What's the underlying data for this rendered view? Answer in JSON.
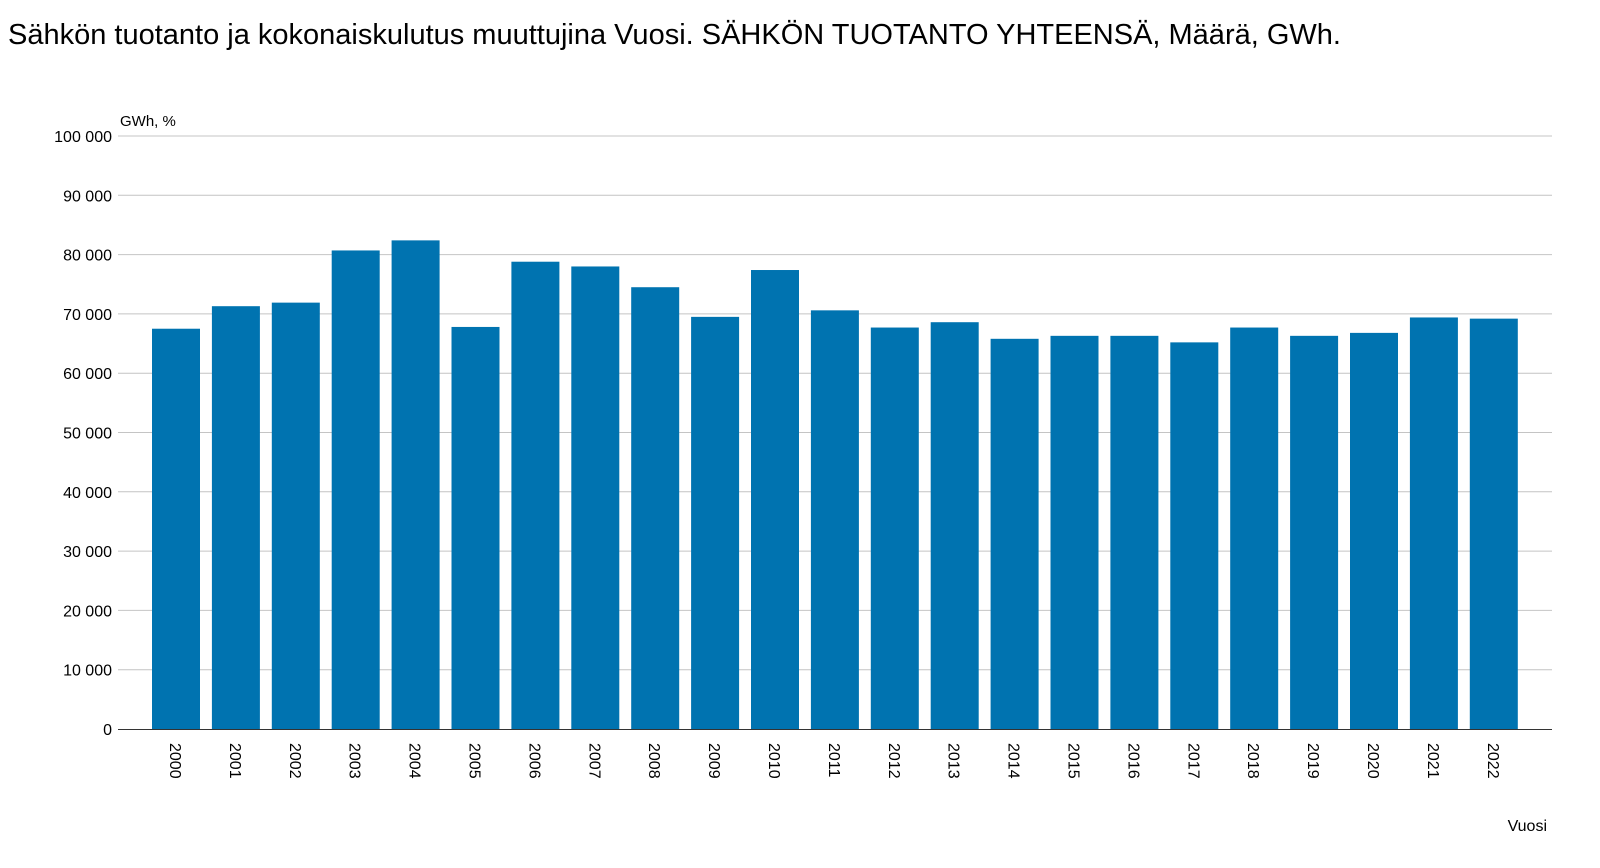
{
  "chart_data": {
    "type": "bar",
    "title": "Sähkön tuotanto ja kokonaiskulutus muuttujina Vuosi. SÄHKÖN TUOTANTO YHTEENSÄ, Määrä, GWh.",
    "ylabel": "GWh, %",
    "xlabel": "Vuosi",
    "ylim": [
      0,
      100000
    ],
    "yticks": [
      0,
      10000,
      20000,
      30000,
      40000,
      50000,
      60000,
      70000,
      80000,
      90000,
      100000
    ],
    "ytick_labels": [
      "0",
      "10 000",
      "20 000",
      "30 000",
      "40 000",
      "50 000",
      "60 000",
      "70 000",
      "80 000",
      "90 000",
      "100 000"
    ],
    "categories": [
      "2000",
      "2001",
      "2002",
      "2003",
      "2004",
      "2005",
      "2006",
      "2007",
      "2008",
      "2009",
      "2010",
      "2011",
      "2012",
      "2013",
      "2014",
      "2015",
      "2016",
      "2017",
      "2018",
      "2019",
      "2020",
      "2021",
      "2022"
    ],
    "series": [
      {
        "values": [
          67500,
          71300,
          71900,
          80700,
          82400,
          67800,
          78800,
          78000,
          74500,
          69500,
          77400,
          70600,
          67700,
          68600,
          65800,
          66300,
          66300,
          65200,
          67700,
          66300,
          66800,
          69400,
          69200
        ],
        "color": "#0073b0"
      }
    ],
    "grid": true,
    "legend": "none"
  }
}
